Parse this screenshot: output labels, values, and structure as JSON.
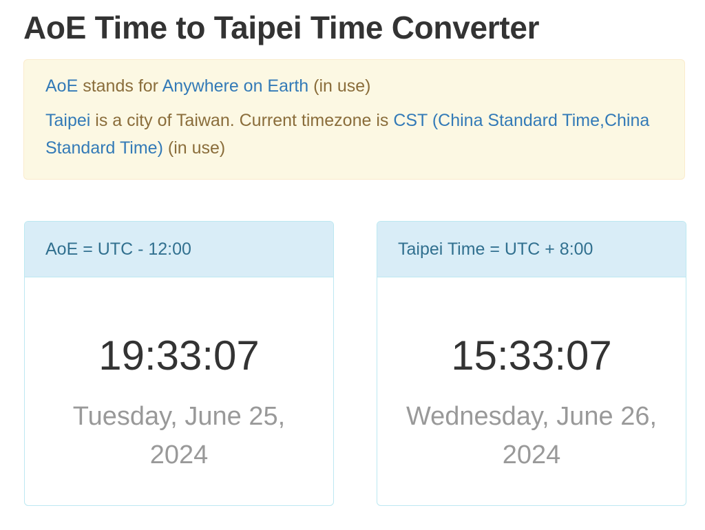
{
  "page": {
    "title": "AoE Time to Taipei Time Converter"
  },
  "info": {
    "line1": {
      "link1": "AoE",
      "text1": " stands for ",
      "link2": "Anywhere on Earth",
      "text2": " (in use)"
    },
    "line2": {
      "link1": "Taipei",
      "text1": " is a city of Taiwan. Current timezone is ",
      "link2": "CST (China Standard Time,China Standard Time)",
      "text2": " (in use)"
    }
  },
  "panels": [
    {
      "heading": "AoE = UTC - 12:00",
      "time": "19:33:07",
      "date": "Tuesday, June 25, 2024"
    },
    {
      "heading": "Taipei Time = UTC + 8:00",
      "time": "15:33:07",
      "date": "Wednesday, June 26, 2024"
    }
  ],
  "colors": {
    "info_background": "#fcf8e3",
    "info_text": "#8a6d3b",
    "link": "#337ab7",
    "panel_heading_background": "#d9edf7",
    "panel_heading_text": "#31708f",
    "date_text": "#999999"
  }
}
